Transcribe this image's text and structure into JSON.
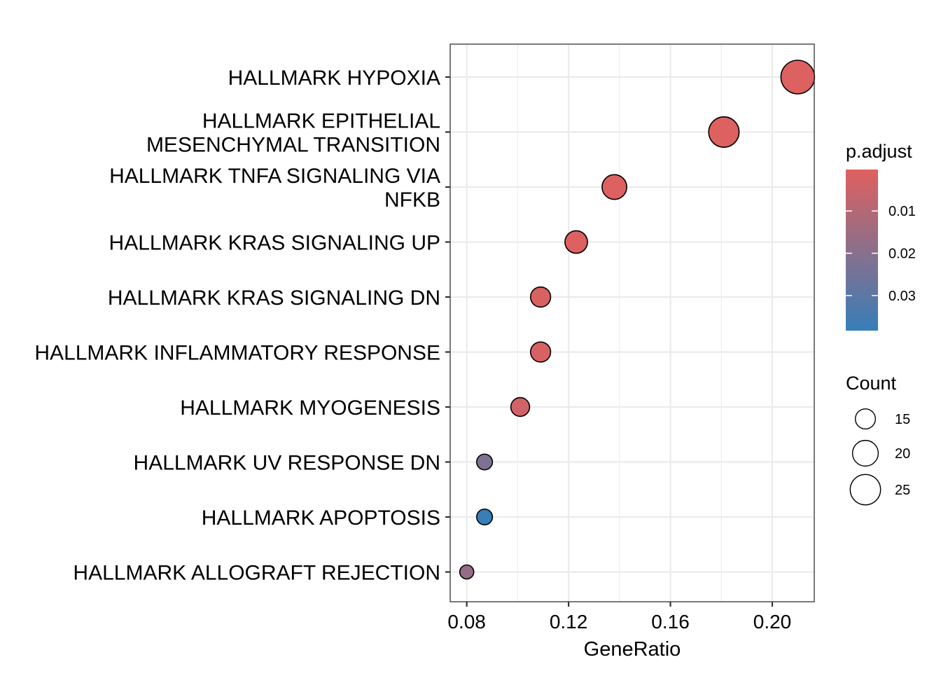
{
  "chart_data": {
    "type": "scatter",
    "subtype": "dotplot",
    "categories": [
      "HALLMARK HYPOXIA",
      "HALLMARK EPITHELIAL MESENCHYMAL TRANSITION",
      "HALLMARK TNFA SIGNALING VIA NFKB",
      "HALLMARK KRAS SIGNALING UP",
      "HALLMARK KRAS SIGNALING DN",
      "HALLMARK INFLAMMATORY RESPONSE",
      "HALLMARK MYOGENESIS",
      "HALLMARK UV RESPONSE DN",
      "HALLMARK APOPTOSIS",
      "HALLMARK ALLOGRAFT REJECTION"
    ],
    "category_lines": [
      [
        "HALLMARK HYPOXIA"
      ],
      [
        "HALLMARK EPITHELIAL",
        "MESENCHYMAL TRANSITION"
      ],
      [
        "HALLMARK TNFA SIGNALING VIA",
        "NFKB"
      ],
      [
        "HALLMARK KRAS SIGNALING UP"
      ],
      [
        "HALLMARK KRAS SIGNALING DN"
      ],
      [
        "HALLMARK INFLAMMATORY RESPONSE"
      ],
      [
        "HALLMARK MYOGENESIS"
      ],
      [
        "HALLMARK UV RESPONSE DN"
      ],
      [
        "HALLMARK APOPTOSIS"
      ],
      [
        "HALLMARK ALLOGRAFT REJECTION"
      ]
    ],
    "gene_ratio": [
      0.21,
      0.181,
      0.138,
      0.123,
      0.109,
      0.109,
      0.101,
      0.087,
      0.087,
      0.08
    ],
    "count": [
      29,
      25,
      19,
      17,
      15,
      15,
      14,
      12,
      12,
      11
    ],
    "p_adjust": [
      0.001,
      0.001,
      0.001,
      0.001,
      0.002,
      0.002,
      0.004,
      0.022,
      0.038,
      0.017
    ],
    "xlabel": "GeneRatio",
    "ylabel": "",
    "xlim": [
      0.0735,
      0.2165
    ],
    "xticks": [
      0.08,
      0.12,
      0.16,
      0.2
    ],
    "xtick_labels": [
      "0.08",
      "0.12",
      "0.16",
      "0.20"
    ],
    "grid": true,
    "color_legend": {
      "title": "p.adjust",
      "range": [
        0.0002,
        0.0383
      ],
      "ticks": [
        0.01,
        0.02,
        0.03
      ],
      "tick_labels": [
        "0.01",
        "0.02",
        "0.03"
      ],
      "low_color": "#e0605e",
      "high_color": "#377eb8"
    },
    "size_legend": {
      "title": "Count",
      "values": [
        15,
        20,
        25
      ],
      "labels": [
        "15",
        "20",
        "25"
      ]
    },
    "legend_position": "right"
  }
}
